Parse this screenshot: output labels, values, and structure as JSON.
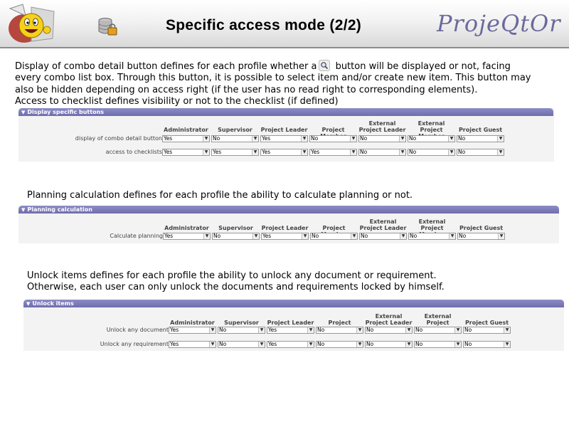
{
  "header": {
    "title": "Specific access mode (2/2)",
    "brand": "ProjeQtOr"
  },
  "intro": {
    "line1_pre": "Display of combo detail button defines for each profile whether a",
    "line1_post": "button will be displayed or not, facing",
    "line2": "every combo list box. Through this button, it is possible to select item  and/or create new item. This button may",
    "line3": "also be hidden depending on access right (if the user has no read right to corresponding elements).",
    "line4": "Access to checklist defines visibility or not to the checklist (if defined)"
  },
  "text_planning": "Planning calculation defines for each profile the ability to calculate planning or not.",
  "text_unlock": {
    "line1": "Unlock items defines for each profile the ability to unlock any document or requirement.",
    "line2": "Otherwise, each user can only unlock the documents and requirements locked by himself."
  },
  "profiles": [
    {
      "l1": "",
      "l2": "Administrator"
    },
    {
      "l1": "",
      "l2": "Supervisor"
    },
    {
      "l1": "",
      "l2": "Project Leader"
    },
    {
      "l1": "",
      "l2": "Project Member"
    },
    {
      "l1": "External",
      "l2": "Project Leader"
    },
    {
      "l1": "External",
      "l2": "Project Member"
    },
    {
      "l1": "",
      "l2": "Project Guest"
    }
  ],
  "panels": {
    "buttons": {
      "title": "Display specific buttons",
      "rows": [
        {
          "label": "display of combo detail button",
          "values": [
            "Yes",
            "No",
            "Yes",
            "No",
            "No",
            "No",
            "No"
          ]
        },
        {
          "label": "access to checklists",
          "values": [
            "Yes",
            "Yes",
            "Yes",
            "Yes",
            "No",
            "No",
            "No"
          ]
        }
      ]
    },
    "planning": {
      "title": "Planning calculation",
      "rows": [
        {
          "label": "Calculate planning",
          "values": [
            "Yes",
            "No",
            "Yes",
            "No",
            "No",
            "No",
            "No"
          ]
        }
      ]
    },
    "unlock": {
      "title": "Unlock items",
      "rows": [
        {
          "label": "Unlock any document",
          "values": [
            "Yes",
            "No",
            "Yes",
            "No",
            "No",
            "No",
            "No"
          ]
        },
        {
          "label": "Unlock any requirement",
          "values": [
            "Yes",
            "No",
            "Yes",
            "No",
            "No",
            "No",
            "No"
          ]
        }
      ]
    }
  },
  "icons": {
    "logo": "smiley-mascot-logo-icon",
    "db": "database-lock-icon",
    "search": "search-icon",
    "dropdown": "chevron-down-icon",
    "collapse": "collapse-triangle-icon"
  },
  "colors": {
    "bar": "#7b7ab9",
    "brand": "#6b6a9c",
    "panel": "#f3f3f4"
  }
}
